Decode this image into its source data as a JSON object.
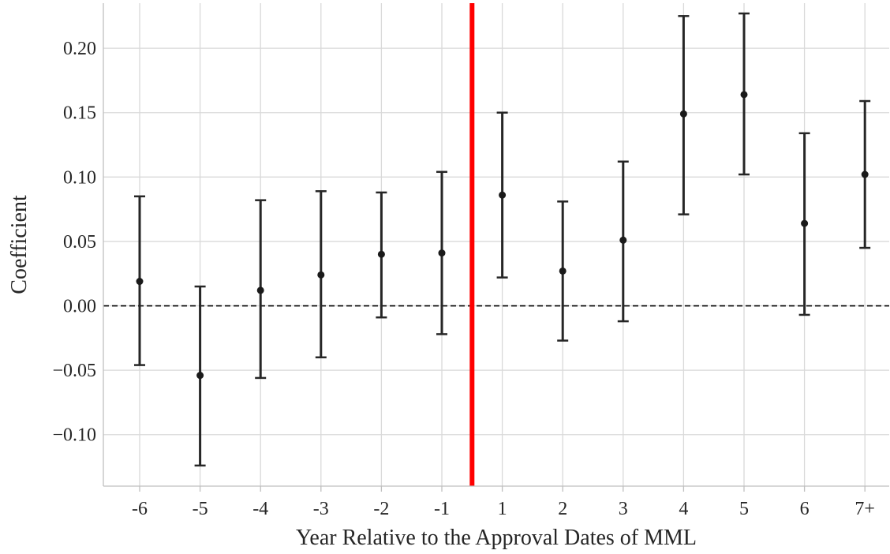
{
  "chart_data": {
    "type": "scatter",
    "title": "",
    "xlabel": "Year Relative to the Approval Dates of MML",
    "ylabel": "Coefficient",
    "categories": [
      "-6",
      "-5",
      "-4",
      "-3",
      "-2",
      "-1",
      "1",
      "2",
      "3",
      "4",
      "5",
      "6",
      "7+"
    ],
    "series": [
      {
        "values": [
          0.019,
          -0.054,
          0.012,
          0.024,
          0.04,
          0.041,
          0.086,
          0.027,
          0.051,
          0.149,
          0.164,
          0.064,
          0.102
        ],
        "lower": [
          -0.046,
          -0.124,
          -0.056,
          -0.04,
          -0.009,
          -0.022,
          0.022,
          -0.027,
          -0.012,
          0.071,
          0.102,
          -0.007,
          0.045
        ],
        "upper": [
          0.085,
          0.015,
          0.082,
          0.089,
          0.088,
          0.104,
          0.15,
          0.081,
          0.112,
          0.225,
          0.227,
          0.134,
          0.159
        ]
      }
    ],
    "ylim": [
      -0.14,
      0.235
    ],
    "yticks": [
      -0.1,
      -0.05,
      0.0,
      0.05,
      0.1,
      0.15,
      0.2
    ],
    "ytick_labels": [
      "−0.10",
      "−0.05",
      "0.00",
      "0.05",
      "0.10",
      "0.15",
      "0.20"
    ],
    "reference_hline": 0.0,
    "event_marker_between": [
      "-1",
      "1"
    ],
    "grid": true,
    "colors": {
      "points": "#1a1a1a",
      "error_bars": "#262626",
      "event_line": "#ff0000",
      "zero_line": "#000000",
      "grid": "#d9d9d9",
      "axis": "#bfbfbf"
    }
  }
}
